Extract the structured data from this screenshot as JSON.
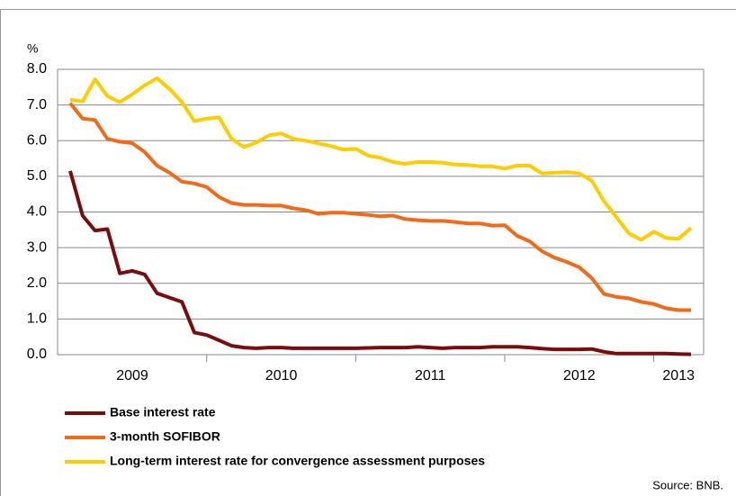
{
  "chart_data": {
    "type": "line",
    "y_label": "%",
    "source": "Source: BNB.",
    "categories": [
      null,
      null,
      null,
      null,
      null,
      "2009",
      null,
      null,
      null,
      null,
      null,
      null,
      null,
      null,
      null,
      null,
      null,
      "2010",
      null,
      null,
      null,
      null,
      null,
      null,
      null,
      null,
      null,
      null,
      null,
      "2011",
      null,
      null,
      null,
      null,
      null,
      null,
      null,
      null,
      null,
      null,
      null,
      "2012",
      null,
      null,
      null,
      null,
      null,
      null,
      null,
      "2013",
      null
    ],
    "ylim": [
      0,
      8
    ],
    "yticks": [
      {
        "value": 0,
        "label": "0.0"
      },
      {
        "value": 1,
        "label": "1.0"
      },
      {
        "value": 2,
        "label": "2.0"
      },
      {
        "value": 3,
        "label": "3.0"
      },
      {
        "value": 4,
        "label": "4.0"
      },
      {
        "value": 5,
        "label": "5.0"
      },
      {
        "value": 6,
        "label": "6.0"
      },
      {
        "value": 7,
        "label": "7.0"
      },
      {
        "value": 8,
        "label": "8.0"
      }
    ],
    "grid": true,
    "series": [
      {
        "name": "Base interest rate",
        "color": "#7b0c0c",
        "values": [
          5.15,
          3.9,
          3.48,
          3.52,
          2.28,
          2.35,
          2.25,
          1.72,
          1.6,
          1.48,
          0.62,
          0.55,
          0.4,
          0.25,
          0.2,
          0.18,
          0.2,
          0.2,
          0.18,
          0.18,
          0.18,
          0.18,
          0.18,
          0.18,
          0.19,
          0.2,
          0.2,
          0.2,
          0.22,
          0.2,
          0.18,
          0.2,
          0.2,
          0.2,
          0.22,
          0.22,
          0.22,
          0.2,
          0.17,
          0.15,
          0.15,
          0.15,
          0.16,
          0.08,
          0.03,
          0.03,
          0.03,
          0.03,
          0.03,
          0.02,
          0.01
        ]
      },
      {
        "name": "3-month SOFIBOR",
        "color": "#f26a18",
        "values": [
          7.05,
          6.62,
          6.58,
          6.05,
          5.97,
          5.93,
          5.68,
          5.3,
          5.1,
          4.85,
          4.8,
          4.7,
          4.42,
          4.25,
          4.2,
          4.2,
          4.18,
          4.18,
          4.1,
          4.05,
          3.95,
          3.98,
          3.98,
          3.95,
          3.92,
          3.88,
          3.9,
          3.8,
          3.77,
          3.75,
          3.75,
          3.72,
          3.68,
          3.68,
          3.62,
          3.63,
          3.33,
          3.18,
          2.9,
          2.72,
          2.6,
          2.45,
          2.15,
          1.7,
          1.62,
          1.58,
          1.48,
          1.42,
          1.3,
          1.25,
          1.25
        ]
      },
      {
        "name": "Long-term interest rate for convergence assessment purposes",
        "color": "#ffcc00",
        "values": [
          7.15,
          7.1,
          7.72,
          7.25,
          7.08,
          7.3,
          7.55,
          7.75,
          7.45,
          7.08,
          6.55,
          6.62,
          6.65,
          6.05,
          5.82,
          5.95,
          6.15,
          6.2,
          6.05,
          6.0,
          5.92,
          5.85,
          5.75,
          5.77,
          5.58,
          5.52,
          5.4,
          5.35,
          5.4,
          5.4,
          5.38,
          5.33,
          5.32,
          5.28,
          5.28,
          5.22,
          5.3,
          5.3,
          5.08,
          5.1,
          5.12,
          5.08,
          4.88,
          4.3,
          3.85,
          3.4,
          3.22,
          3.45,
          3.27,
          3.25,
          3.55
        ]
      }
    ]
  }
}
